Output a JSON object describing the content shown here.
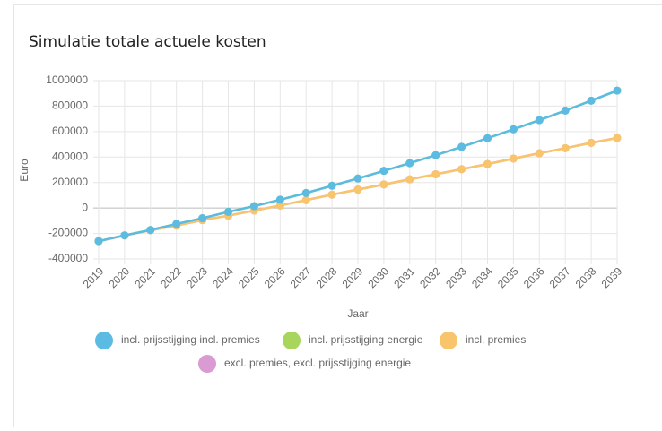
{
  "chart_data": {
    "type": "line",
    "title": "Simulatie totale actuele kosten",
    "xlabel": "Jaar",
    "ylabel": "Euro",
    "categories": [
      "2019",
      "2020",
      "2021",
      "2022",
      "2023",
      "2024",
      "2025",
      "2026",
      "2027",
      "2028",
      "2029",
      "2030",
      "2031",
      "2032",
      "2033",
      "2034",
      "2035",
      "2036",
      "2037",
      "2038",
      "2039"
    ],
    "series": [
      {
        "name": "incl. prijsstijging incl. premies",
        "color": "#5bbbe2",
        "values": [
          -260000,
          -215000,
          -172000,
          -125000,
          -80000,
          -30000,
          15000,
          65000,
          118000,
          175000,
          232000,
          292000,
          352000,
          415000,
          480000,
          548000,
          618000,
          690000,
          765000,
          843000,
          922000
        ]
      },
      {
        "name": "incl. prijsstijging energie",
        "color": "#a8d65c",
        "values": [
          -260000,
          -215000,
          -172000,
          -125000,
          -80000,
          -30000,
          15000,
          65000,
          118000,
          175000,
          232000,
          292000,
          352000,
          415000,
          480000,
          548000,
          618000,
          690000,
          765000,
          843000,
          922000
        ]
      },
      {
        "name": "incl. premies",
        "color": "#f8c46c",
        "values": [
          -260000,
          -215000,
          -175000,
          -138000,
          -95000,
          -60000,
          -20000,
          20000,
          62000,
          105000,
          145000,
          185000,
          225000,
          265000,
          305000,
          345000,
          388000,
          430000,
          470000,
          512000,
          550000
        ]
      },
      {
        "name": "excl. premies, excl. prijsstijging energie",
        "color": "#d99bd1",
        "values": [
          -260000,
          -215000,
          -175000,
          -138000,
          -95000,
          -60000,
          -20000,
          20000,
          62000,
          105000,
          145000,
          185000,
          225000,
          265000,
          305000,
          345000,
          388000,
          430000,
          470000,
          512000,
          550000
        ]
      }
    ],
    "ylim": [
      -400000,
      1000000
    ],
    "yticks": [
      -400000,
      -200000,
      0,
      200000,
      400000,
      600000,
      800000,
      1000000
    ],
    "grid": true
  }
}
